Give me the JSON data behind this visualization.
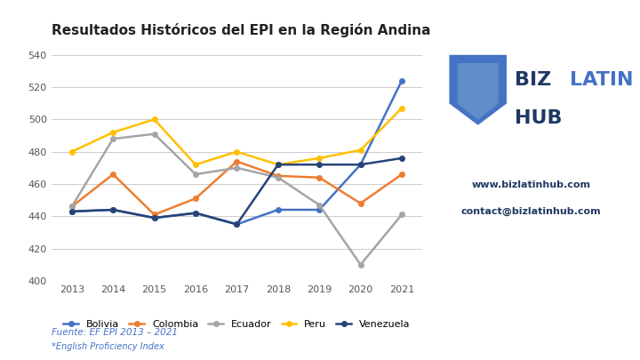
{
  "title": "Resultados Históricos del EPI en la Región Andina",
  "years": [
    2013,
    2014,
    2015,
    2016,
    2017,
    2018,
    2019,
    2020,
    2021
  ],
  "series": {
    "Bolivia": [
      443,
      444,
      439,
      442,
      435,
      444,
      444,
      472,
      524
    ],
    "Colombia": [
      446,
      466,
      441,
      451,
      474,
      465,
      464,
      448,
      466
    ],
    "Ecuador": [
      446,
      488,
      491,
      466,
      470,
      464,
      447,
      410,
      441
    ],
    "Peru": [
      480,
      492,
      500,
      472,
      480,
      472,
      476,
      481,
      507
    ],
    "Venezuela": [
      443,
      444,
      439,
      442,
      435,
      472,
      472,
      472,
      476
    ]
  },
  "colors": {
    "Bolivia": "#4472C4",
    "Colombia": "#ED7D31",
    "Ecuador": "#A5A5A5",
    "Peru": "#FFC000",
    "Venezuela": "#264478"
  },
  "ylim": [
    400,
    545
  ],
  "yticks": [
    400,
    420,
    440,
    460,
    480,
    500,
    520,
    540
  ],
  "footnote1": "Fuente: EF EPI 2013 – 2021",
  "footnote2": "*English Proficiency Index",
  "website": "www.bizlatinhub.com",
  "contact": "contact@bizlatinhub.com",
  "background_color": "#FFFFFF"
}
